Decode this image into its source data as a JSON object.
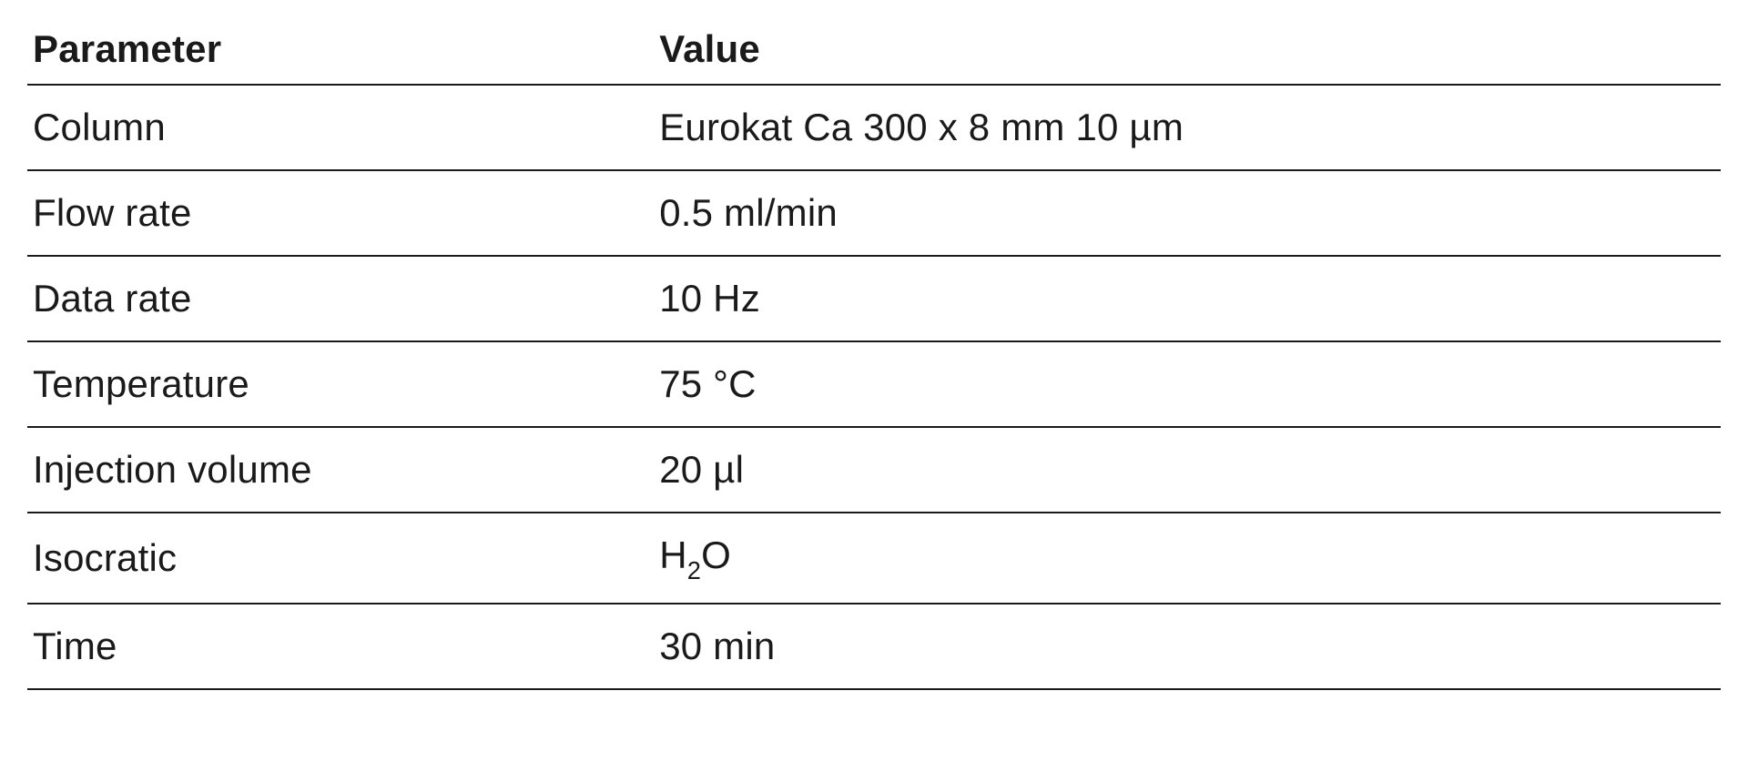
{
  "table": {
    "type": "table",
    "background_color": "#ffffff",
    "text_color": "#1a1a1a",
    "border_color": "#1a1a1a",
    "border_width": 2,
    "font_size_pt": 32,
    "header_font_weight": 700,
    "body_font_weight": 400,
    "columns": [
      {
        "label": "Parameter",
        "width_pct": 37,
        "align": "left"
      },
      {
        "label": "Value",
        "width_pct": 63,
        "align": "left"
      }
    ],
    "rows": [
      {
        "parameter": "Column",
        "value": "Eurokat Ca 300 x 8 mm 10 µm"
      },
      {
        "parameter": "Flow rate",
        "value": "0.5 ml/min"
      },
      {
        "parameter": "Data rate",
        "value": "10 Hz"
      },
      {
        "parameter": "Temperature",
        "value": "75 °C"
      },
      {
        "parameter": "Injection volume",
        "value": "20 µl"
      },
      {
        "parameter": "Isocratic",
        "value": "H₂O",
        "value_html": "H<sub>2</sub>O"
      },
      {
        "parameter": "Time",
        "value": "30 min"
      }
    ]
  }
}
